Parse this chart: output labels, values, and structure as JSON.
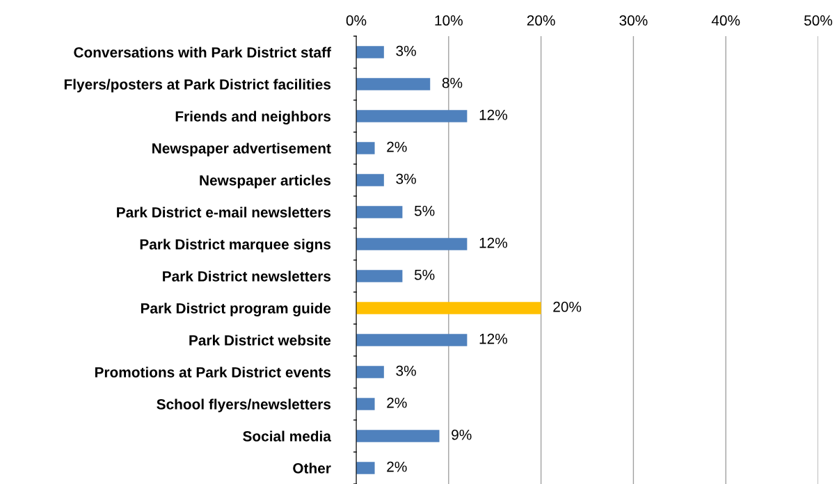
{
  "chart_data": {
    "type": "bar",
    "orientation": "horizontal",
    "categories": [
      "Conversations with Park District staff",
      "Flyers/posters at Park District facilities",
      "Friends and neighbors",
      "Newspaper advertisement",
      "Newspaper articles",
      "Park District e-mail newsletters",
      "Park District marquee signs",
      "Park District newsletters",
      "Park District program guide",
      "Park District website",
      "Promotions at Park District events",
      "School flyers/newsletters",
      "Social media",
      "Other"
    ],
    "values": [
      3,
      8,
      12,
      2,
      3,
      5,
      12,
      5,
      20,
      12,
      3,
      2,
      9,
      2
    ],
    "colors": [
      "#4f81bd",
      "#4f81bd",
      "#4f81bd",
      "#4f81bd",
      "#4f81bd",
      "#4f81bd",
      "#4f81bd",
      "#4f81bd",
      "#ffc000",
      "#4f81bd",
      "#4f81bd",
      "#4f81bd",
      "#4f81bd",
      "#4f81bd"
    ],
    "xlim": [
      0,
      50
    ],
    "xticks": [
      {
        "value": 0,
        "label": "0%"
      },
      {
        "value": 10,
        "label": "10%"
      },
      {
        "value": 20,
        "label": "20%"
      },
      {
        "value": 30,
        "label": "30%"
      },
      {
        "value": 40,
        "label": "40%"
      },
      {
        "value": 50,
        "label": "50%"
      }
    ],
    "value_labels": [
      "3%",
      "8%",
      "12%",
      "2%",
      "3%",
      "5%",
      "12%",
      "5%",
      "20%",
      "12%",
      "3%",
      "2%",
      "9%",
      "2%"
    ],
    "grid": "x"
  }
}
